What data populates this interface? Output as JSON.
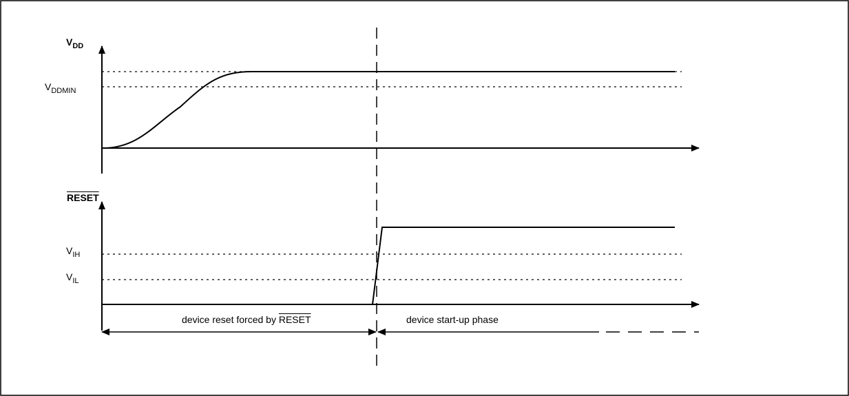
{
  "vdd_chart": {
    "axis_label": {
      "main": "V",
      "sub": "DD"
    },
    "levels": [
      {
        "main": "V",
        "sub": "DDMIN"
      }
    ]
  },
  "reset_chart": {
    "axis_label": "RESET",
    "levels": [
      {
        "main": "V",
        "sub": "IH"
      },
      {
        "main": "V",
        "sub": "IL"
      }
    ]
  },
  "phases": {
    "reset_phase": {
      "text": "device reset forced by ",
      "overbar": "RESET"
    },
    "startup_phase": "device start-up phase"
  },
  "colors": {
    "line": "#000000",
    "background": "#ffffff"
  }
}
